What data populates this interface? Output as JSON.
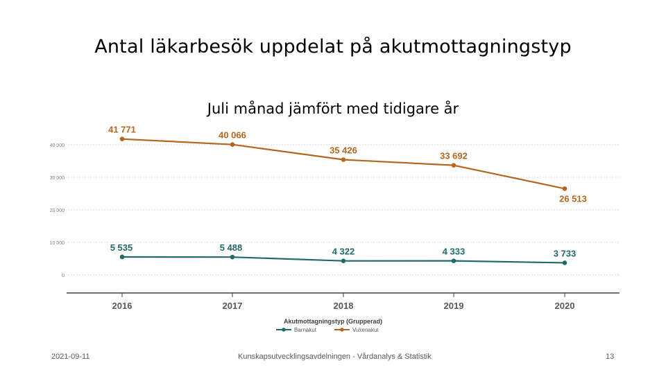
{
  "slide": {
    "title": "Antal läkarbesök uppdelat på akutmottagningstyp",
    "subtitle": "Juli månad jämfört med tidigare år"
  },
  "footer": {
    "date": "2021-09-11",
    "center": "Kunskapsutvecklingsavdelningen - Vårdanalys & Statistik",
    "page": "13"
  },
  "chart_data": {
    "type": "line",
    "x": [
      "2016",
      "2017",
      "2018",
      "2019",
      "2020"
    ],
    "y_ticks": [
      0,
      10000,
      20000,
      30000,
      40000
    ],
    "y_tick_labels": [
      "0",
      "10 000",
      "20 000",
      "30 000",
      "40 000"
    ],
    "ylim": [
      0,
      44000
    ],
    "grid": true,
    "legend": {
      "title": "Akutmottagningstyp (Grupperad)",
      "position": "bottom-center"
    },
    "series": [
      {
        "name": "Vuxenakut",
        "color": "#b5651d",
        "values": [
          41771,
          40066,
          35426,
          33692,
          26513
        ],
        "labels": [
          "41 771",
          "40 066",
          "35 426",
          "33 692",
          "26 513"
        ]
      },
      {
        "name": "Barnakut",
        "color": "#1f6b6b",
        "values": [
          5535,
          5488,
          4322,
          4333,
          3733
        ],
        "labels": [
          "5 535",
          "5 488",
          "4 322",
          "4 333",
          "3 733"
        ]
      }
    ]
  }
}
